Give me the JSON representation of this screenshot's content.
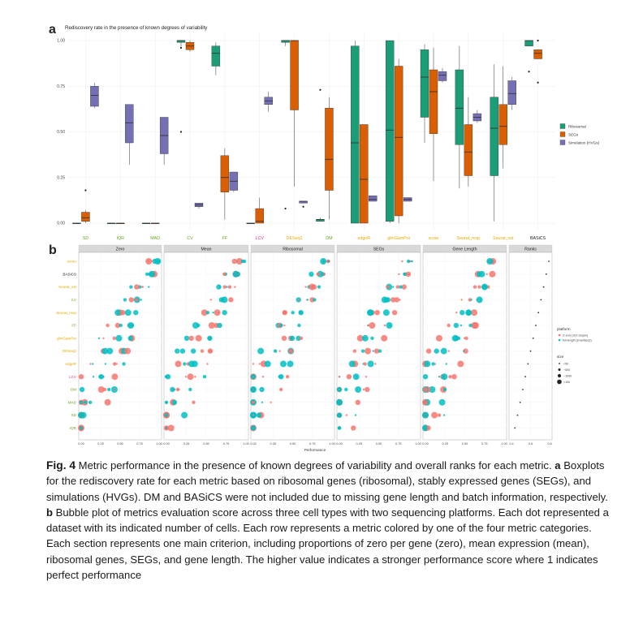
{
  "colors": {
    "ribosomal": "#1b9e77",
    "segs": "#d95f02",
    "simulation": "#7570b3",
    "platform_10x": "#f8766d",
    "platform_full": "#00bfc4",
    "cat_orange": "#e6ab02",
    "cat_green": "#66a61e",
    "cat_red": "#e7298a",
    "cat_black": "#222222",
    "panel_bg": "#ebebeb",
    "strip_bg": "#d9d9d9",
    "grid": "#ffffff"
  },
  "panel_a": {
    "letter": "a",
    "title": "Rediscovery rate in the presence of known degrees of variability",
    "legend": [
      "Ribosomal",
      "SEGs",
      "Simulation (HVGs)"
    ]
  },
  "panel_b": {
    "letter": "b",
    "xlabel": "Performance",
    "legend_platform_title": "platform",
    "legend_platform": [
      "3'-end (10X chopin)",
      "full-length (smartseq2)"
    ],
    "legend_size_title": "size",
    "legend_size": [
      "<50",
      "~500",
      "~1000",
      ">10k"
    ]
  },
  "chart_data": [
    {
      "type": "box",
      "title": "Rediscovery rate in the presence of known degrees of variability",
      "ylim": [
        0,
        1
      ],
      "yticks": [
        "0.00",
        "0.25",
        "0.50",
        "0.75",
        "1.00"
      ],
      "categories": [
        "SD",
        "IQR",
        "MAD",
        "CV",
        "FF",
        "LCV",
        "DESeq2",
        "DM",
        "edgeR",
        "glmGamPoi",
        "scran",
        "Seurat_mvp",
        "Seurat_vst",
        "BASiCS"
      ],
      "category_colors": [
        "green",
        "green",
        "green",
        "green",
        "green",
        "red",
        "orange",
        "green",
        "orange",
        "orange",
        "orange",
        "orange",
        "orange",
        "black"
      ],
      "series": [
        {
          "name": "Ribosomal",
          "boxes": [
            [
              0,
              0,
              0,
              0,
              0
            ],
            [
              0,
              0,
              0,
              0,
              0
            ],
            [
              0,
              0,
              0,
              0,
              0
            ],
            [
              0.96,
              0.99,
              1.0,
              1.0,
              1.0
            ],
            [
              0.81,
              0.86,
              0.93,
              0.97,
              0.99
            ],
            [
              0,
              0,
              0,
              0,
              0
            ],
            [
              0.97,
              0.99,
              1.0,
              1.0,
              1.0
            ],
            [
              0.01,
              0.01,
              0.02,
              0.02,
              0.03
            ],
            [
              0,
              0,
              0.44,
              0.97,
              1.0
            ],
            [
              0,
              0.01,
              0.51,
              1.0,
              1.0
            ],
            [
              0.44,
              0.58,
              0.8,
              0.95,
              0.98
            ],
            [
              0.19,
              0.43,
              0.63,
              0.84,
              0.97
            ],
            [
              0.01,
              0.26,
              0.52,
              0.69,
              0.87
            ],
            [
              0.97,
              0.97,
              1.0,
              1.0,
              1.0
            ]
          ]
        },
        {
          "name": "SEGs",
          "boxes": [
            [
              0,
              0.01,
              0.03,
              0.06,
              0.07
            ],
            [
              0,
              0,
              0,
              0,
              0
            ],
            [
              0,
              0,
              0,
              0,
              0
            ],
            [
              0.94,
              0.95,
              0.97,
              0.99,
              1.0
            ],
            [
              0.02,
              0.17,
              0.25,
              0.37,
              0.41
            ],
            [
              0,
              0,
              0.01,
              0.08,
              0.14
            ],
            [
              0.2,
              0.62,
              1.0,
              1.0,
              1.0
            ],
            [
              0.02,
              0.18,
              0.35,
              0.63,
              0.69
            ],
            [
              0,
              0,
              0.24,
              0.54,
              0.54
            ],
            [
              0,
              0.04,
              0.47,
              0.86,
              0.9
            ],
            [
              0.23,
              0.49,
              0.72,
              0.84,
              0.96
            ],
            [
              0.2,
              0.26,
              0.39,
              0.54,
              0.69
            ],
            [
              0.3,
              0.43,
              0.53,
              0.65,
              0.86
            ],
            [
              0.91,
              0.9,
              0.93,
              0.95,
              0.95
            ]
          ]
        },
        {
          "name": "Simulation (HVGs)",
          "boxes": [
            [
              0.63,
              0.64,
              0.7,
              0.75,
              0.77
            ],
            [
              0.32,
              0.44,
              0.55,
              0.65,
              0.65
            ],
            [
              0.32,
              0.38,
              0.48,
              0.58,
              0.58
            ],
            [
              0.08,
              0.09,
              0.1,
              0.11,
              0.11
            ],
            [
              0.17,
              0.18,
              0.23,
              0.28,
              0.28
            ],
            [
              0.61,
              0.65,
              0.67,
              0.69,
              0.72
            ],
            [
              0.11,
              0.11,
              0.12,
              0.12,
              0.12
            ],
            null,
            [
              0.12,
              0.12,
              0.13,
              0.15,
              0.15
            ],
            [
              0.12,
              0.12,
              0.13,
              0.14,
              0.14
            ],
            [
              0.77,
              0.78,
              0.81,
              0.83,
              0.85
            ],
            [
              0.55,
              0.56,
              0.58,
              0.6,
              0.62
            ],
            [
              0.62,
              0.65,
              0.71,
              0.78,
              0.8
            ],
            null
          ]
        }
      ],
      "outliers": [
        {
          "category": "SD",
          "series": "SEGs",
          "y": 0.18
        },
        {
          "category": "CV",
          "series": "Ribosomal",
          "y": 0.96
        },
        {
          "category": "CV",
          "series": "Ribosomal",
          "y": 0.5
        },
        {
          "category": "DESeq2",
          "series": "Ribosomal",
          "y": 0.08
        },
        {
          "category": "DESeq2",
          "series": "Simulation (HVGs)",
          "y": 0.09
        },
        {
          "category": "DM",
          "series": "Ribosomal",
          "y": 0.73
        },
        {
          "category": "BASiCS",
          "series": "Ribosomal",
          "y": 0.83
        },
        {
          "category": "BASiCS",
          "series": "SEGs",
          "y": 1.0
        },
        {
          "category": "BASiCS",
          "series": "SEGs",
          "y": 0.77
        }
      ]
    },
    {
      "type": "scatter",
      "facets": [
        "Zero",
        "Mean",
        "Ribosomal",
        "SEGs",
        "Gene Length",
        "Ranks"
      ],
      "rows": [
        "scran",
        "BASiCS",
        "Seurat_vst",
        "CV",
        "Seurat_mvp",
        "FF",
        "glmGamPoi",
        "DESeq2",
        "edgeR",
        "LCV",
        "DM",
        "MAD",
        "SD",
        "IQR"
      ],
      "row_colors": [
        "orange",
        "black",
        "orange",
        "green",
        "orange",
        "green",
        "orange",
        "orange",
        "orange",
        "red",
        "green",
        "green",
        "green",
        "green"
      ],
      "xlim": [
        0,
        1
      ],
      "xticks": [
        "0.00",
        "0.25",
        "0.50",
        "0.75",
        "1.00"
      ],
      "xticks_ranks": [
        "0.4",
        "0.6",
        "0.8"
      ],
      "xlabel": "Performance",
      "platforms": [
        "3'-end (10X chopin)",
        "full-length (smartseq2)"
      ]
    }
  ],
  "caption": {
    "fig_label": "Fig. 4",
    "parts": [
      {
        "bold": false,
        "text": " Metric performance in the presence of known degrees of variability and overall ranks for each metric. "
      },
      {
        "bold": true,
        "text": "a"
      },
      {
        "bold": false,
        "text": " Boxplots for the rediscovery rate for each metric based on ribosomal genes (ribosomal), stably expressed genes (SEGs), and simulations (HVGs). DM and BASiCS were not included due to missing gene length and batch information, respectively. "
      },
      {
        "bold": true,
        "text": "b"
      },
      {
        "bold": false,
        "text": " Bubble plot of metrics evaluation score across three cell types with two sequencing platforms. Each dot represented a dataset with its indicated number of cells. Each row represents a metric colored by one of the four metric categories. Each section represents one main criterion, including proportions of zero per gene (zero), mean expression (mean), ribosomal genes, SEGs, and gene length. The higher value indicates a stronger performance score where 1 indicates perfect performance"
      }
    ]
  }
}
